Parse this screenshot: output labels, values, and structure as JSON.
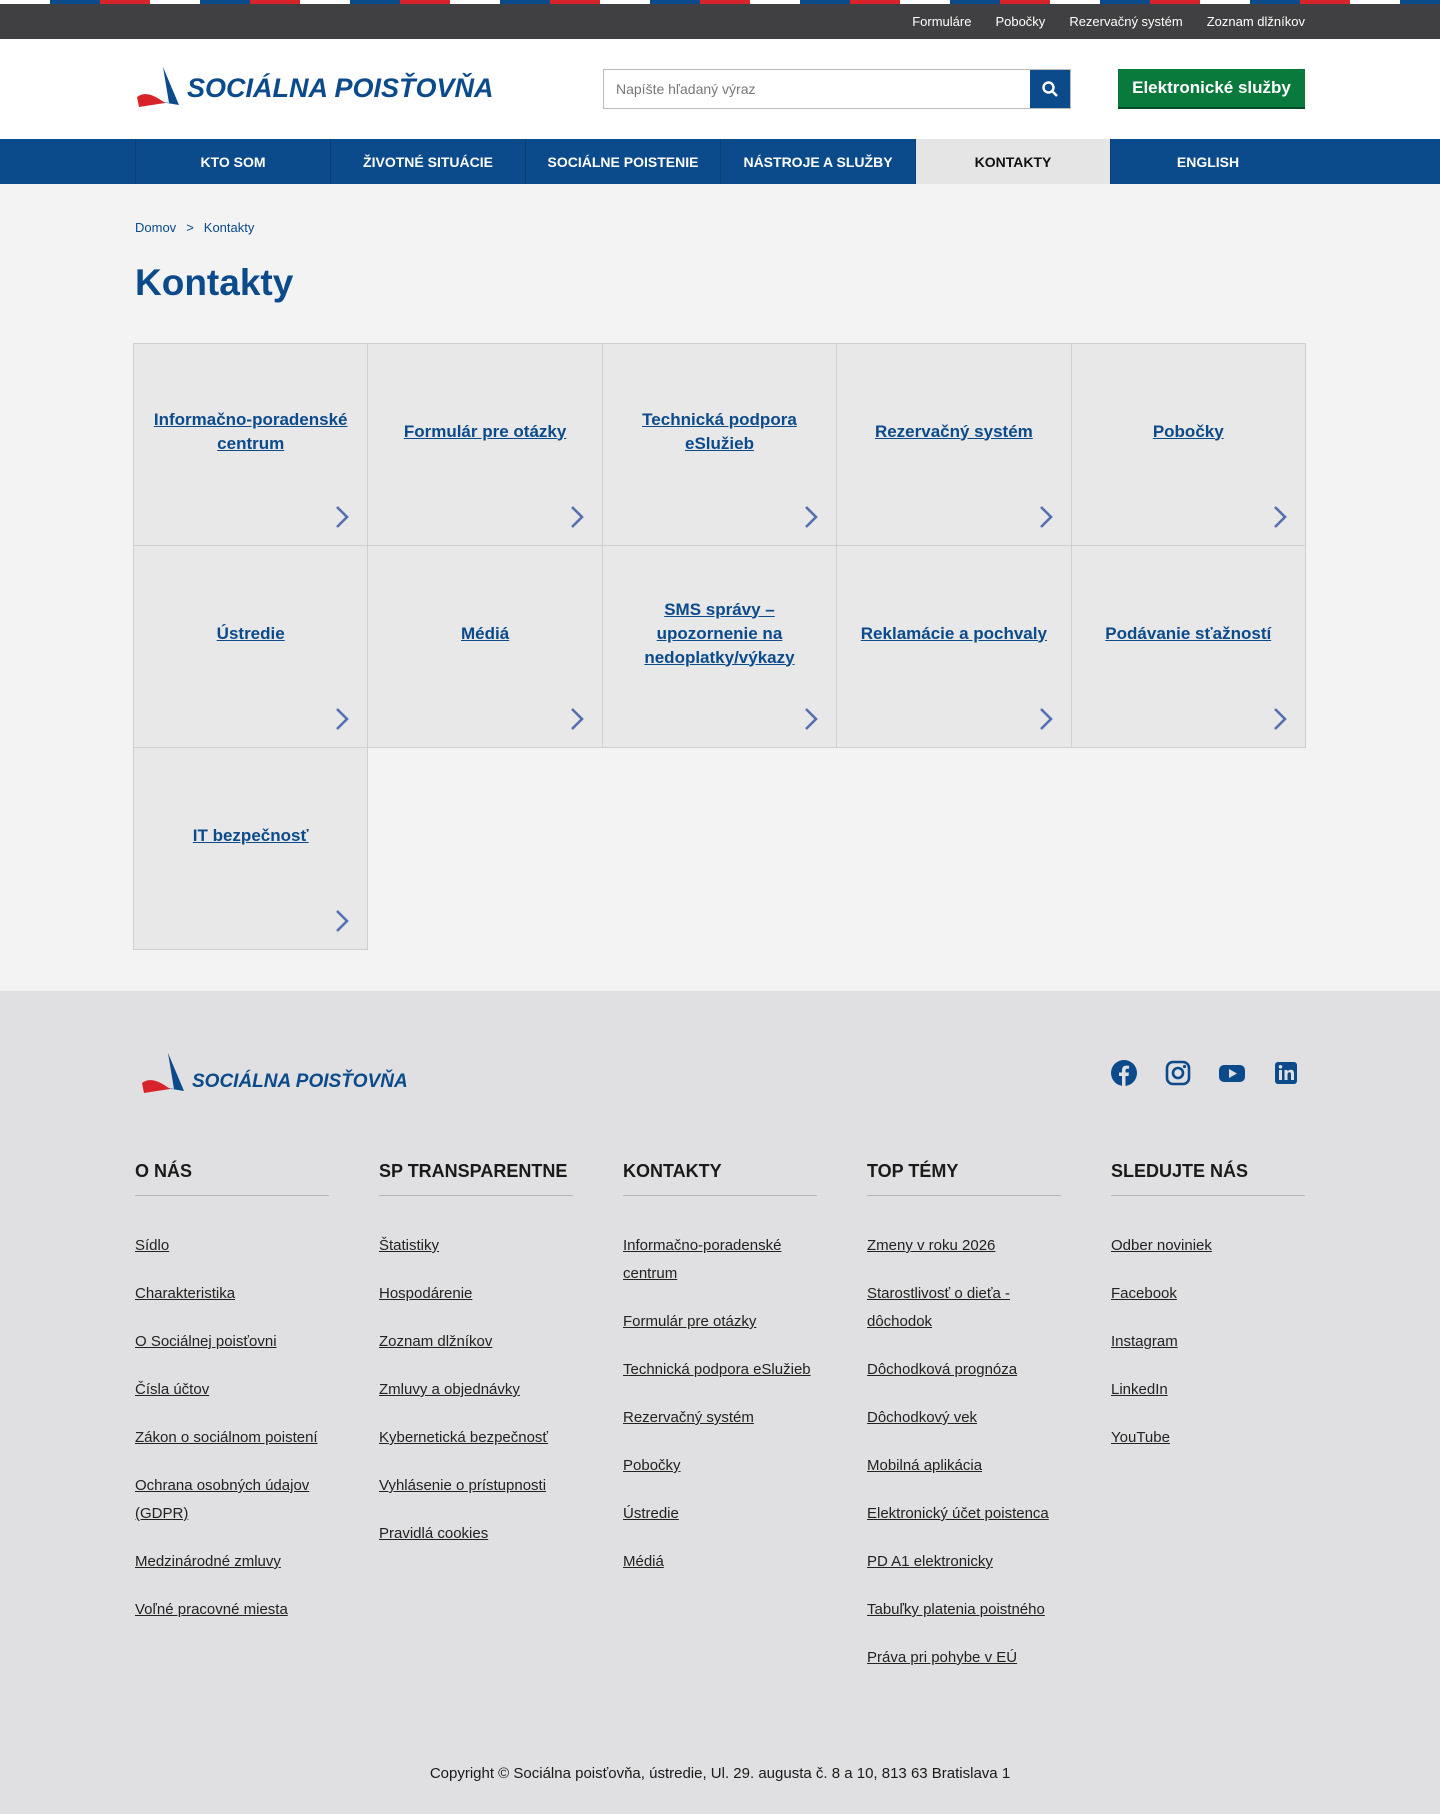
{
  "top_links": [
    "Formuláre",
    "Pobočky",
    "Rezervačný systém",
    "Zoznam dlžníkov"
  ],
  "header": {
    "logo": "SOCIÁLNA POISŤOVŇA",
    "search_placeholder": "Napíšte hľadaný výraz",
    "eservices": "Elektronické služby"
  },
  "nav": [
    "KTO SOM",
    "ŽIVOTNÉ SITUÁCIE",
    "SOCIÁLNE POISTENIE",
    "NÁSTROJE A SLUŽBY",
    "KONTAKTY",
    "ENGLISH"
  ],
  "breadcrumb": [
    "Domov",
    ">",
    "Kontakty"
  ],
  "title": "Kontakty",
  "tiles": [
    "Informačno-poradenské centrum",
    "Formulár pre otázky",
    "Technická podpora eSlužieb",
    "Rezervačný systém",
    "Pobočky",
    "Ústredie",
    "Médiá",
    "SMS správy – upozornenie na nedoplatky/výkazy",
    "Reklamácie a pochvaly",
    "Podávanie sťažností",
    "IT bezpečnosť"
  ],
  "footer": {
    "logo": "SOCIÁLNA POISŤOVŇA",
    "columns": [
      {
        "heading": "O NÁS",
        "links": [
          "Sídlo",
          "Charakteristika",
          "O Sociálnej poisťovni",
          "Čísla účtov",
          "Zákon o sociálnom poistení",
          "Ochrana osobných údajov (GDPR)",
          "Medzinárodné zmluvy",
          "Voľné pracovné miesta"
        ]
      },
      {
        "heading": "SP TRANSPARENTNE",
        "links": [
          "Štatistiky",
          "Hospodárenie",
          "Zoznam dlžníkov",
          "Zmluvy a objednávky",
          "Kybernetická bezpečnosť",
          "Vyhlásenie o prístupnosti",
          "Pravidlá cookies"
        ]
      },
      {
        "heading": "KONTAKTY",
        "links": [
          "Informačno-poradenské centrum",
          "Formulár pre otázky",
          "Technická podpora eSlužieb",
          "Rezervačný systém",
          "Pobočky",
          "Ústredie",
          "Médiá"
        ]
      },
      {
        "heading": "TOP TÉMY",
        "links": [
          "Zmeny v roku 2026",
          "Starostlivosť o dieťa - dôchodok",
          "Dôchodková prognóza",
          "Dôchodkový vek",
          "Mobilná aplikácia",
          "Elektronický účet poistenca",
          "PD A1 elektronicky",
          "Tabuľky platenia poistného",
          "Práva pri pohybe v EÚ"
        ]
      },
      {
        "heading": "SLEDUJTE NÁS",
        "links": [
          "Odber noviniek",
          "Facebook",
          "Instagram",
          "LinkedIn",
          "YouTube"
        ]
      }
    ],
    "copyright": "Copyright © Sociálna poisťovňa, ústredie, Ul. 29. augusta č. 8 a 10, 813 63 Bratislava 1"
  }
}
